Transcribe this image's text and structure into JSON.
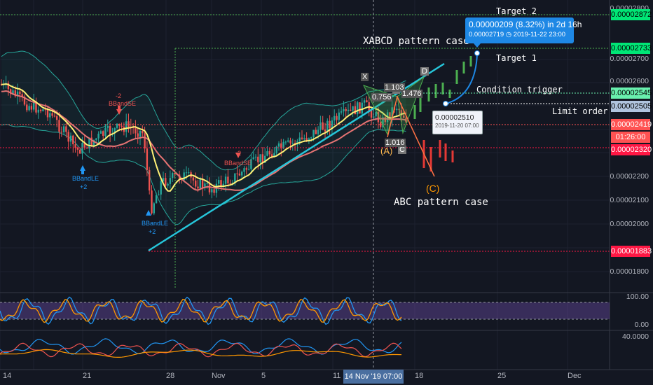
{
  "annotations": {
    "target2": "Target 2",
    "target1": "Target 1",
    "xabcd": "XABCD pattern case",
    "condition": "Condition trigger",
    "limit": "Limit order",
    "abc": "ABC pattern case"
  },
  "tooltip": {
    "headline": "0.00000209 (8.32%) in 2d 16h",
    "price": "0.00002719",
    "date": "2019-11-22",
    "time": "23:00"
  },
  "limit_popup": {
    "price": "0.00002510",
    "date": "2019-11-20 07:00"
  },
  "pattern_labels": {
    "X": "X",
    "A": "(A)",
    "B": "B",
    "C": "C",
    "D": "D",
    "C_abc": "(C)",
    "r0756": "0.756",
    "r1103": "1.103",
    "r1476": "1.476",
    "r1016": "1.016"
  },
  "indicator_labels": {
    "bb_le_1": "BBandLE",
    "bb_le_1_val": "+2",
    "bb_le_2": "BBandLE",
    "bb_le_2_val": "+2",
    "bb_se_1": "BBandSE",
    "bb_se_1_val": "-2",
    "bb_se_2": "BBandSE",
    "bb_se_2_val": "-2"
  },
  "price_tags": [
    {
      "text": "0.00002872",
      "color": "#00e676",
      "level": "target2"
    },
    {
      "text": "0.00002733",
      "color": "#00e676",
      "level": "target1"
    },
    {
      "text": "0.00002545",
      "color": "#69f0ae",
      "level": "condition"
    },
    {
      "text": "0.00002505",
      "color": "#b0c4de",
      "level": "limit"
    },
    {
      "text": "0.00002419",
      "color": "#ff5252",
      "level": "last"
    },
    {
      "text": "01:26:00",
      "color": "#ff5252",
      "level": "countdown"
    },
    {
      "text": "0.00002320",
      "color": "#ff1744",
      "level": "stop"
    },
    {
      "text": "0.00001883",
      "color": "#ff1744",
      "level": "low"
    }
  ],
  "price_axis": [
    "0.00002800",
    "0.00002700",
    "0.00002600",
    "0.00002200",
    "0.00002100",
    "0.00002000",
    "0.00001800"
  ],
  "rsi_axis": [
    "100.00",
    "0.00"
  ],
  "macd_axis": [
    "40.0000"
  ],
  "date_axis": [
    "14",
    "21",
    "28",
    "Nov",
    "5",
    "11",
    "18",
    "25",
    "Dec"
  ],
  "crosshair_label": "14 Nov '19   07:00",
  "colors": {
    "background": "#131722",
    "bull": "#26a69a",
    "bear": "#ef5350",
    "trendline": "#26c6da",
    "pattern_green": "#2e7d32",
    "pattern_orange": "#ff9800",
    "projection": "#1e88e5",
    "ma_yellow": "#fff176",
    "ma_red": "#e57373"
  }
}
